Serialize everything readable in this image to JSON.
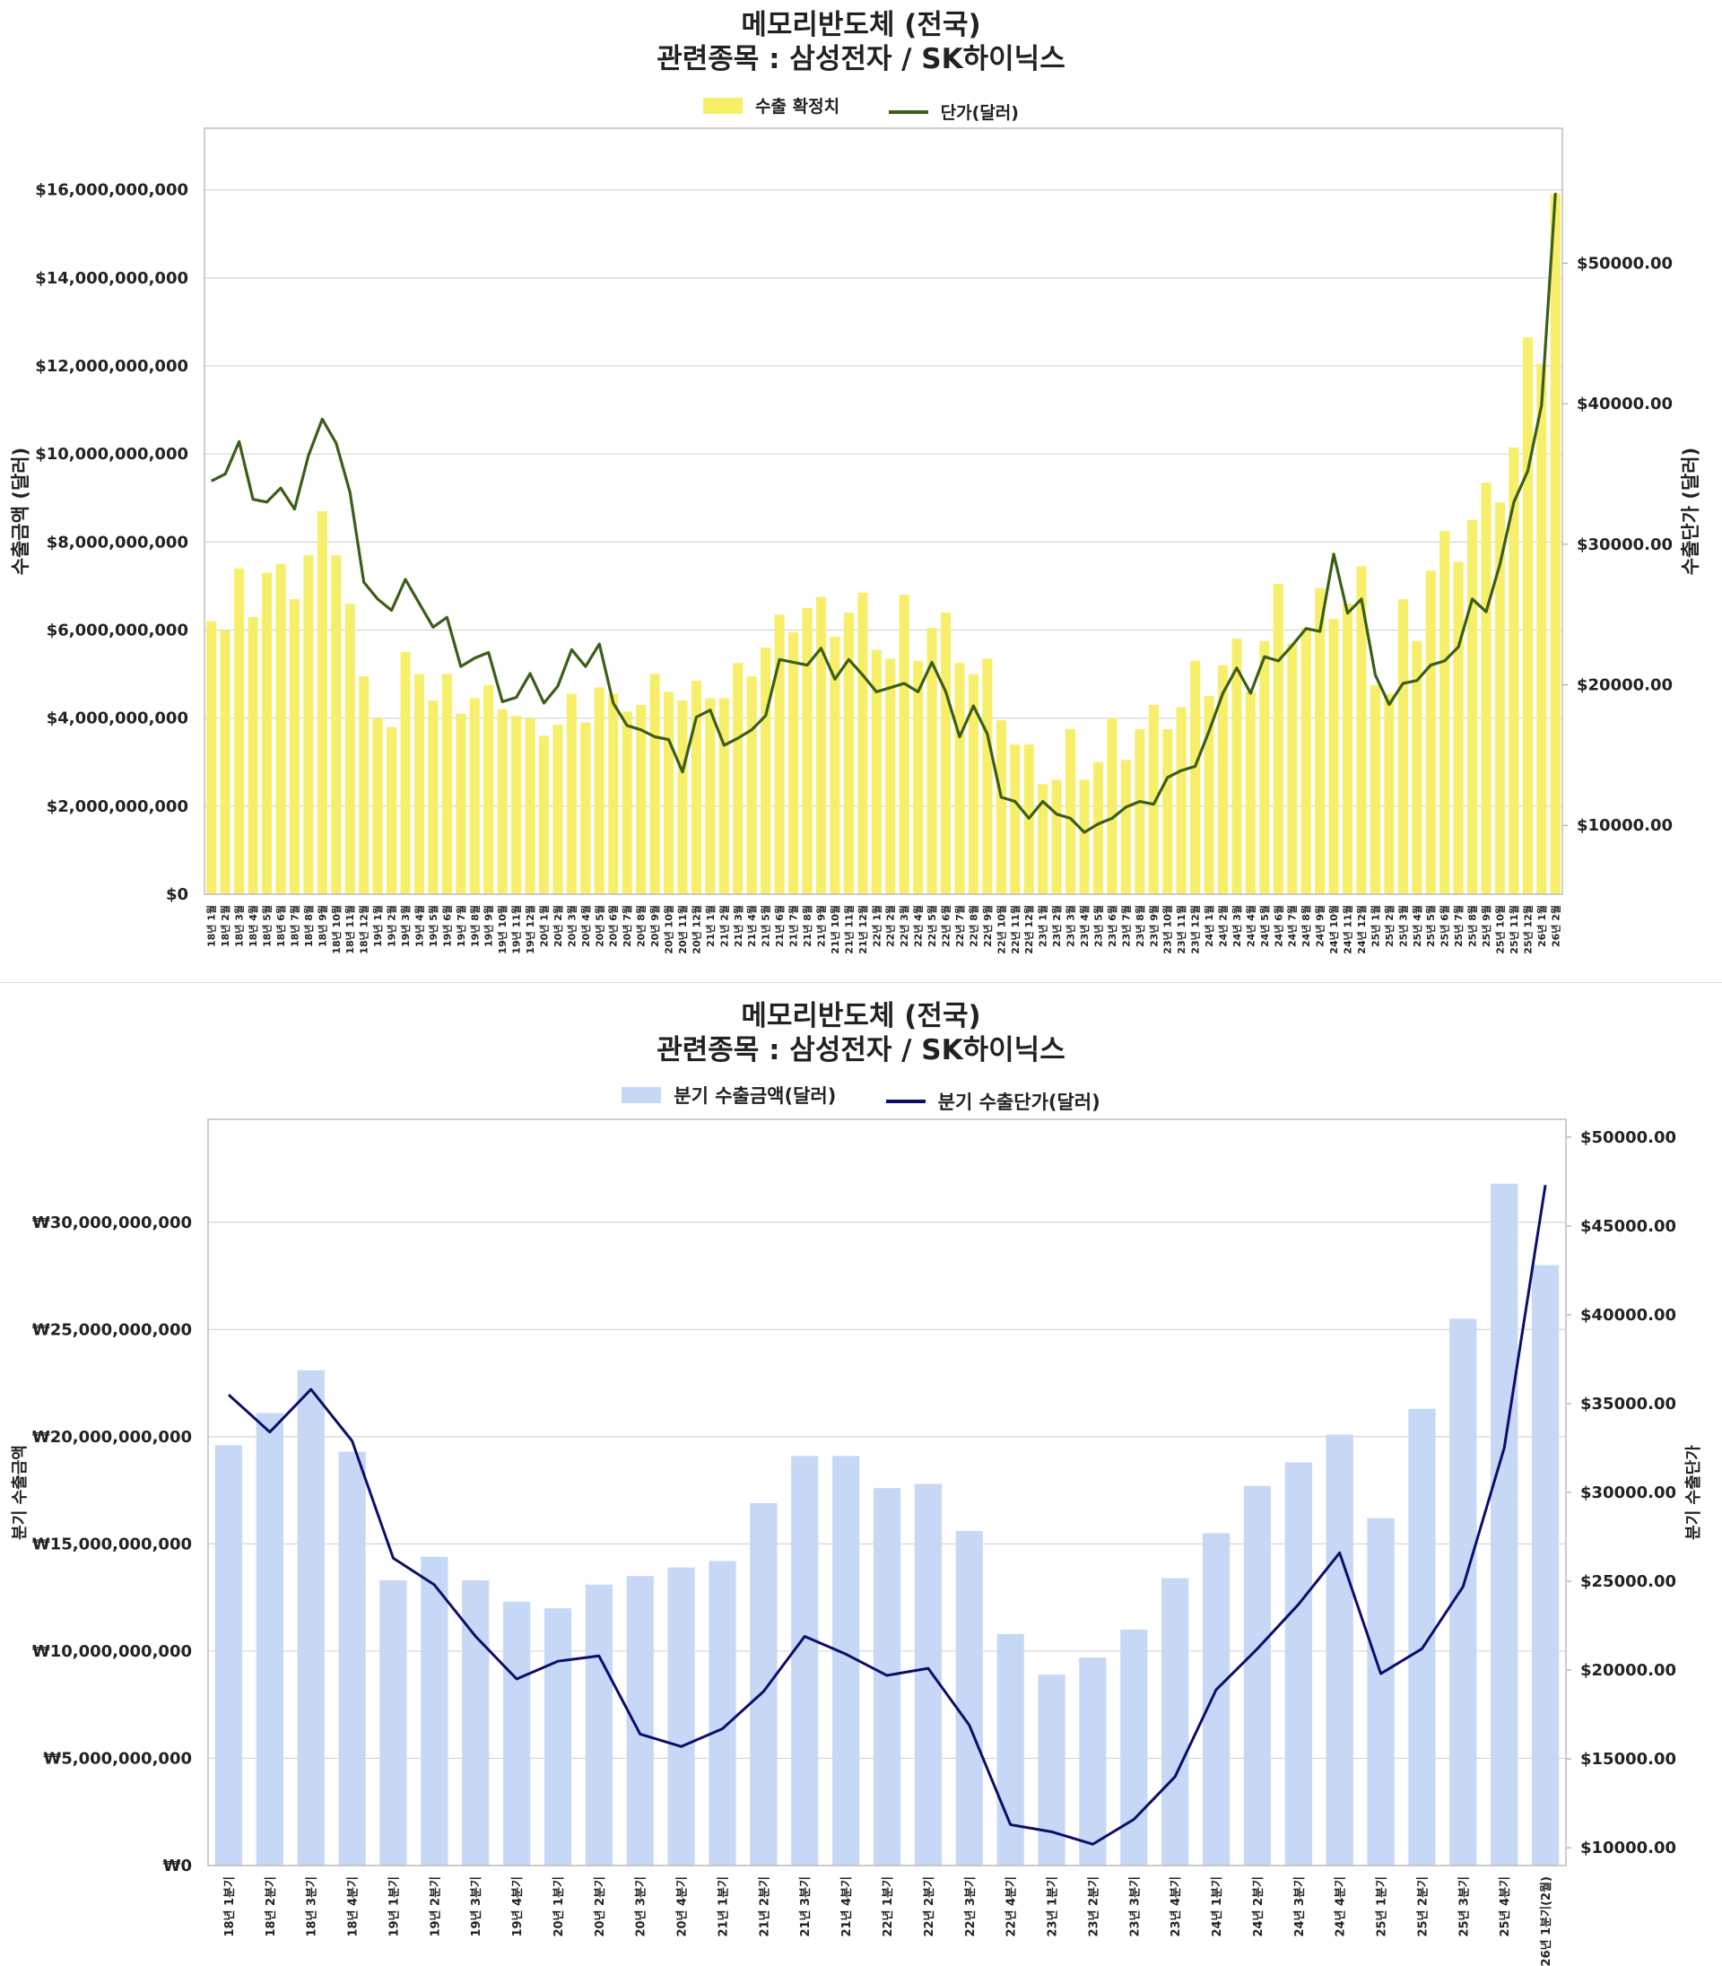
{
  "chart_data": [
    {
      "type": "bar+line",
      "title_line1": "메모리반도체 (전국)",
      "title_line2": "관련종목 : 삼성전자 / SK하이닉스",
      "legend": {
        "bar": "수출 확정치",
        "line": "단가(달러)"
      },
      "ylabel_left": "수출금액 (달러)",
      "ylabel_right": "수출단가 (달러)",
      "y_left_ticks": [
        "$0",
        "$2,000,000,000",
        "$4,000,000,000",
        "$6,000,000,000",
        "$8,000,000,000",
        "$10,000,000,000",
        "$12,000,000,000",
        "$14,000,000,000",
        "$16,000,000,000"
      ],
      "y_left_lim": [
        0,
        17400000000
      ],
      "y_right_ticks": [
        "$10000.00",
        "$20000.00",
        "$30000.00",
        "$40000.00",
        "$50000.00"
      ],
      "y_right_lim": [
        5100,
        59600
      ],
      "colors": {
        "bar": "#f7ef6a",
        "line": "#3b5e17"
      },
      "categories": [
        "18년 1월",
        "18년 2월",
        "18년 3월",
        "18년 4월",
        "18년 5월",
        "18년 6월",
        "18년 7월",
        "18년 8월",
        "18년 9월",
        "18년 10월",
        "18년 11월",
        "18년 12월",
        "19년 1월",
        "19년 2월",
        "19년 3월",
        "19년 4월",
        "19년 5월",
        "19년 6월",
        "19년 7월",
        "19년 8월",
        "19년 9월",
        "19년 10월",
        "19년 11월",
        "19년 12월",
        "20년 1월",
        "20년 2월",
        "20년 3월",
        "20년 4월",
        "20년 5월",
        "20년 6월",
        "20년 7월",
        "20년 8월",
        "20년 9월",
        "20년 10월",
        "20년 11월",
        "20년 12월",
        "21년 1월",
        "21년 2월",
        "21년 3월",
        "21년 4월",
        "21년 5월",
        "21년 6월",
        "21년 7월",
        "21년 8월",
        "21년 9월",
        "21년 10월",
        "21년 11월",
        "21년 12월",
        "22년 1월",
        "22년 2월",
        "22년 3월",
        "22년 4월",
        "22년 5월",
        "22년 6월",
        "22년 7월",
        "22년 8월",
        "22년 9월",
        "22년 10월",
        "22년 11월",
        "22년 12월",
        "23년 1월",
        "23년 2월",
        "23년 3월",
        "23년 4월",
        "23년 5월",
        "23년 6월",
        "23년 7월",
        "23년 8월",
        "23년 9월",
        "23년 10월",
        "23년 11월",
        "23년 12월",
        "24년 1월",
        "24년 2월",
        "24년 3월",
        "24년 4월",
        "24년 5월",
        "24년 6월",
        "24년 7월",
        "24년 8월",
        "24년 9월",
        "24년 10월",
        "24년 11월",
        "24년 12월",
        "25년 1월",
        "25년 2월",
        "25년 3월",
        "25년 4월",
        "25년 5월",
        "25년 6월",
        "25년 7월",
        "25년 8월",
        "25년 9월",
        "25년 10월",
        "25년 11월",
        "25년 12월",
        "26년 1월",
        "26년 2월"
      ],
      "bar_values": [
        6.2,
        6.0,
        7.4,
        6.3,
        7.3,
        7.5,
        6.7,
        7.7,
        8.7,
        7.7,
        6.6,
        4.95,
        4.0,
        3.8,
        5.5,
        5.0,
        4.4,
        5.0,
        4.1,
        4.45,
        4.75,
        4.2,
        4.05,
        4.0,
        3.6,
        3.85,
        4.55,
        3.9,
        4.7,
        4.55,
        4.15,
        4.3,
        5.0,
        4.6,
        4.4,
        4.85,
        4.45,
        4.45,
        5.25,
        4.95,
        5.6,
        6.35,
        5.95,
        6.5,
        6.75,
        5.85,
        6.4,
        6.85,
        5.55,
        5.35,
        6.8,
        5.3,
        6.05,
        6.4,
        5.25,
        5.0,
        5.35,
        3.95,
        3.4,
        3.4,
        2.5,
        2.6,
        3.75,
        2.6,
        3.0,
        4.0,
        3.05,
        3.75,
        4.3,
        3.75,
        4.25,
        5.3,
        4.5,
        5.2,
        5.8,
        4.6,
        5.75,
        7.05,
        5.7,
        6.05,
        6.95,
        6.25,
        6.6,
        7.45,
        4.75,
        4.55,
        6.7,
        5.75,
        7.35,
        8.25,
        7.55,
        8.5,
        9.35,
        8.9,
        10.15,
        12.65,
        12.05,
        15.9
      ],
      "line_values": [
        34500,
        35000,
        37300,
        33200,
        33000,
        34000,
        32500,
        36300,
        38900,
        37200,
        33700,
        27300,
        26100,
        25300,
        27500,
        25800,
        24100,
        24800,
        21300,
        21900,
        22300,
        18800,
        19100,
        20800,
        18700,
        19900,
        22500,
        21300,
        22900,
        18700,
        17100,
        16800,
        16300,
        16100,
        13800,
        17700,
        18200,
        15700,
        16200,
        16800,
        17800,
        21800,
        21600,
        21400,
        22600,
        20400,
        21800,
        20700,
        19500,
        19800,
        20100,
        19500,
        21600,
        19500,
        16300,
        18500,
        16500,
        12000,
        11700,
        10500,
        11700,
        10800,
        10500,
        9500,
        10100,
        10500,
        11300,
        11700,
        11500,
        13400,
        13900,
        14200,
        16700,
        19400,
        21200,
        19400,
        22000,
        21700,
        22800,
        24000,
        23800,
        29300,
        25100,
        26100,
        20700,
        18600,
        20100,
        20300,
        21400,
        21700,
        22700,
        26100,
        25200,
        28600,
        33000,
        35200,
        39900,
        55000
      ],
      "last_bar_extra_value": 12.0
    },
    {
      "type": "bar+line",
      "title_line1": "메모리반도체 (전국)",
      "title_line2": "관련종목 : 삼성전자 / SK하이닉스",
      "legend": {
        "bar": "분기 수출금액(달러)",
        "line": "분기 수출단가(달러)"
      },
      "ylabel_left": "분기 수출금액",
      "ylabel_right": "분기 수출단가",
      "y_left_ticks": [
        "₩0",
        "₩5,000,000,000",
        "₩10,000,000,000",
        "₩15,000,000,000",
        "₩20,000,000,000",
        "₩25,000,000,000",
        "₩30,000,000,000"
      ],
      "y_left_lim": [
        0,
        34800000000
      ],
      "y_right_ticks": [
        "$10000.00",
        "$15000.00",
        "$20000.00",
        "$25000.00",
        "$30000.00",
        "$35000.00",
        "$40000.00",
        "$45000.00",
        "$50000.00"
      ],
      "y_right_lim": [
        9000,
        51000
      ],
      "colors": {
        "bar": "#c6d8f5",
        "line": "#0d0d6b"
      },
      "categories": [
        "18년 1분기",
        "18년 2분기",
        "18년 3분기",
        "18년 4분기",
        "19년 1분기",
        "19년 2분기",
        "19년 3분기",
        "19년 4분기",
        "20년 1분기",
        "20년 2분기",
        "20년 3분기",
        "20년 4분기",
        "21년 1분기",
        "21년 2분기",
        "21년 3분기",
        "21년 4분기",
        "22년 1분기",
        "22년 2분기",
        "22년 3분기",
        "22년 4분기",
        "23년 1분기",
        "23년 2분기",
        "23년 3분기",
        "23년 4분기",
        "24년 1분기",
        "24년 2분기",
        "24년 3분기",
        "24년 4분기",
        "25년 1분기",
        "25년 2분기",
        "25년 3분기",
        "25년 4분기",
        "26년 1분기(2월)"
      ],
      "bar_values": [
        19.6,
        21.1,
        23.1,
        19.3,
        13.3,
        14.4,
        13.3,
        12.3,
        12.0,
        13.1,
        13.5,
        13.9,
        14.2,
        16.9,
        19.1,
        19.1,
        17.6,
        17.8,
        15.6,
        10.8,
        8.9,
        9.7,
        11.0,
        13.4,
        15.5,
        17.7,
        18.8,
        20.1,
        16.2,
        21.3,
        25.5,
        31.8,
        28.0
      ],
      "line_values": [
        35500,
        33400,
        35800,
        32900,
        26300,
        24800,
        21900,
        19500,
        20500,
        20800,
        16400,
        15700,
        16700,
        18800,
        21900,
        20900,
        19700,
        20100,
        16900,
        11300,
        10900,
        10200,
        11600,
        14000,
        18900,
        21200,
        23700,
        26600,
        19800,
        21200,
        24700,
        32500,
        47300
      ]
    }
  ]
}
